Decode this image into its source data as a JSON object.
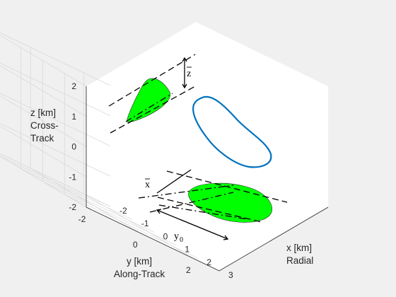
{
  "chart_data": {
    "type": "line3d",
    "xaxis": {
      "label_lines": [
        "x [km]",
        "Radial"
      ],
      "ticks": [
        "-2",
        "-1",
        "0",
        "1",
        "2",
        "3"
      ],
      "lim": [
        -2,
        3
      ]
    },
    "yaxis": {
      "label_lines": [
        "y [km]",
        "Along-Track"
      ],
      "ticks": [
        "-2",
        "0",
        "2"
      ],
      "lim": [
        -2,
        3
      ]
    },
    "zaxis": {
      "label_lines": [
        "z [km]",
        "Cross-",
        "Track"
      ],
      "ticks": [
        "-2",
        "-1",
        "0",
        "1",
        "2"
      ],
      "lim": [
        -2,
        2
      ]
    },
    "grid": true,
    "series": [
      {
        "kind": "relative-orbit-curve",
        "color": "#0072bd"
      },
      {
        "kind": "projection-xz",
        "color": "#00ff00"
      },
      {
        "kind": "projection-xy",
        "color": "#00ff00"
      }
    ],
    "annotations": [
      {
        "symbol": "z",
        "overbar": true
      },
      {
        "symbol": "x",
        "overbar": true
      },
      {
        "symbol": "y",
        "subscript": "0"
      }
    ],
    "colors": {
      "background": "#f0f0f0",
      "axes": "#ffffff",
      "grid": "#d9d9d9",
      "curve": "#0072bd",
      "fill": "#00ff00"
    }
  }
}
